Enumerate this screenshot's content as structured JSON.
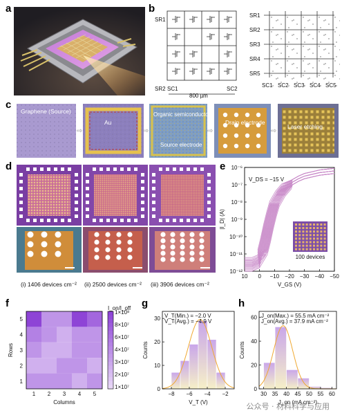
{
  "labels": {
    "a": "a",
    "b": "b",
    "c": "c",
    "d": "d",
    "e": "e",
    "f": "f",
    "g": "g",
    "h": "h"
  },
  "panel_b": {
    "left_rows": [
      "SR1",
      "SR2"
    ],
    "left_cols": [
      "SC1",
      "SC2"
    ],
    "scale": "800 µm",
    "right_rows": [
      "SR1",
      "SR2",
      "SR3",
      "SR4",
      "SR5"
    ],
    "right_cols": [
      "SC1",
      "SC2",
      "SC3",
      "SC4",
      "SC5"
    ]
  },
  "panel_c": {
    "step1": "Graphene (Source)",
    "step2": "Au",
    "step3_a": "Organic semiconductors",
    "step3_b": "Source electrode",
    "step4": "Drain electrode",
    "step5": "Laser etching"
  },
  "panel_d": {
    "captions": [
      "(i)  1406 devices cm⁻²",
      "(ii)  2500 devices cm⁻²",
      "(iii)  3906 devices cm⁻²"
    ]
  },
  "panel_e": {
    "annotation": "V_DS = −15 V",
    "inset_label": "100 devices",
    "xlabel": "V_GS (V)",
    "ylabel": "|I_D| (A)",
    "xticks": [
      "10",
      "0",
      "−10",
      "−20",
      "−30",
      "−40",
      "−50"
    ],
    "yticks": [
      "10⁻⁶",
      "10⁻⁷",
      "10⁻⁸",
      "10⁻⁹",
      "10⁻¹⁰",
      "10⁻¹¹",
      "10⁻¹²"
    ],
    "color": "#c98bc9"
  },
  "panel_f": {
    "xlabel": "Columns",
    "ylabel": "Rows",
    "ticks": [
      "1",
      "2",
      "3",
      "4",
      "5"
    ],
    "cbar_title": "I_on/I_off",
    "cbar_ticks": [
      "1×10⁸",
      "8×10⁷",
      "6×10⁷",
      "4×10⁷",
      "3×10⁷",
      "2×10⁷",
      "1×10⁷"
    ]
  },
  "panel_g": {
    "text1": "V_T(Min.) = −2.0 V",
    "text2": "V_T(Avg.) = −4.9 V",
    "xlabel": "V_T (V)",
    "ylabel": "Counts",
    "xticks": [
      "−8",
      "−6",
      "−4",
      "−2"
    ],
    "yticks": [
      "0",
      "10",
      "20",
      "30"
    ]
  },
  "panel_h": {
    "text1": "J_on(Max.) = 55.5 mA cm⁻²",
    "text2": "J_on(Avg.) = 37.9 mA cm⁻²",
    "xlabel": "J_on (mA cm⁻²)",
    "ylabel": "Counts",
    "xticks": [
      "30",
      "35",
      "40",
      "45",
      "50",
      "55",
      "60"
    ],
    "yticks": [
      "0",
      "20",
      "40",
      "60"
    ]
  },
  "watermark": "公众号 · 材料科学与应用",
  "chart_data": [
    {
      "type": "line",
      "id": "transfer-curves",
      "xlabel": "V_GS (V)",
      "ylabel": "|I_D| (A)",
      "xlim": [
        10,
        -50
      ],
      "ylim_log10": [
        -12,
        -6
      ],
      "yscale": "log",
      "annotation": "V_DS = −15 V",
      "curve_count": 100,
      "x": [
        10,
        5,
        0,
        -2,
        -4,
        -6,
        -8,
        -10,
        -14,
        -18,
        -22,
        -26,
        -30,
        -35,
        -40,
        -45,
        -50
      ],
      "log10_I_typical": [
        -11.6,
        -11.6,
        -11.4,
        -10.9,
        -10.2,
        -9.4,
        -8.7,
        -8.1,
        -7.5,
        -7.1,
        -6.85,
        -6.65,
        -6.5,
        -6.4,
        -6.3,
        -6.25,
        -6.2
      ]
    },
    {
      "type": "heatmap",
      "id": "on-off-map",
      "xlabel": "Columns",
      "ylabel": "Rows",
      "x": [
        1,
        2,
        3,
        4,
        5
      ],
      "y": [
        1,
        2,
        3,
        4,
        5
      ],
      "values_rows_top_to_bottom": [
        [
          100000000.0,
          30000000.0,
          30000000.0,
          100000000.0,
          60000000.0
        ],
        [
          40000000.0,
          30000000.0,
          20000000.0,
          30000000.0,
          30000000.0
        ],
        [
          30000000.0,
          20000000.0,
          20000000.0,
          30000000.0,
          30000000.0
        ],
        [
          20000000.0,
          20000000.0,
          30000000.0,
          30000000.0,
          20000000.0
        ],
        [
          30000000.0,
          30000000.0,
          30000000.0,
          20000000.0,
          30000000.0
        ]
      ],
      "cbar_range": [
        10000000.0,
        100000000.0
      ]
    },
    {
      "type": "bar",
      "id": "vt-histogram",
      "xlabel": "V_T (V)",
      "ylabel": "Counts",
      "bin_centers": [
        -7.5,
        -6.5,
        -5.5,
        -4.5,
        -3.5,
        -2.5
      ],
      "values": [
        7,
        12,
        19,
        29,
        21,
        7
      ],
      "xlim": [
        -9,
        -1
      ],
      "ylim": [
        0,
        33
      ]
    },
    {
      "type": "bar",
      "id": "jon-histogram",
      "xlabel": "J_on (mA cm⁻²)",
      "ylabel": "Counts",
      "bin_centers": [
        32.5,
        37.5,
        42.5,
        47.5,
        52.5,
        57.5
      ],
      "values": [
        22,
        52,
        16,
        9,
        2,
        1
      ],
      "xlim": [
        28,
        62
      ],
      "ylim": [
        0,
        65
      ]
    }
  ]
}
